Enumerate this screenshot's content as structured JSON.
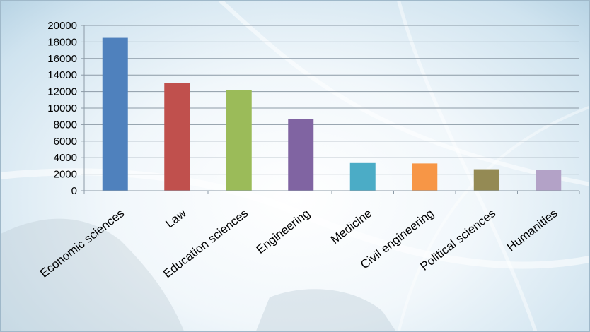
{
  "chart_data": {
    "type": "bar",
    "categories": [
      "Economic sciences",
      "Law",
      "Education sciences",
      "Engineering",
      "Medicine",
      "Civil engineering",
      "Political sciences",
      "Humanities"
    ],
    "values": [
      18500,
      13000,
      12200,
      8700,
      3350,
      3300,
      2600,
      2500
    ],
    "colors": [
      "#4f81bd",
      "#c0504d",
      "#9bbb59",
      "#8064a2",
      "#4bacc6",
      "#f79646",
      "#948a54",
      "#b3a2c7"
    ],
    "y_ticks": [
      "0",
      "2000",
      "4000",
      "6000",
      "8000",
      "10000",
      "12000",
      "14000",
      "16000",
      "18000",
      "20000"
    ],
    "ylim": [
      0,
      20000
    ],
    "grid": true,
    "legend": "none"
  }
}
